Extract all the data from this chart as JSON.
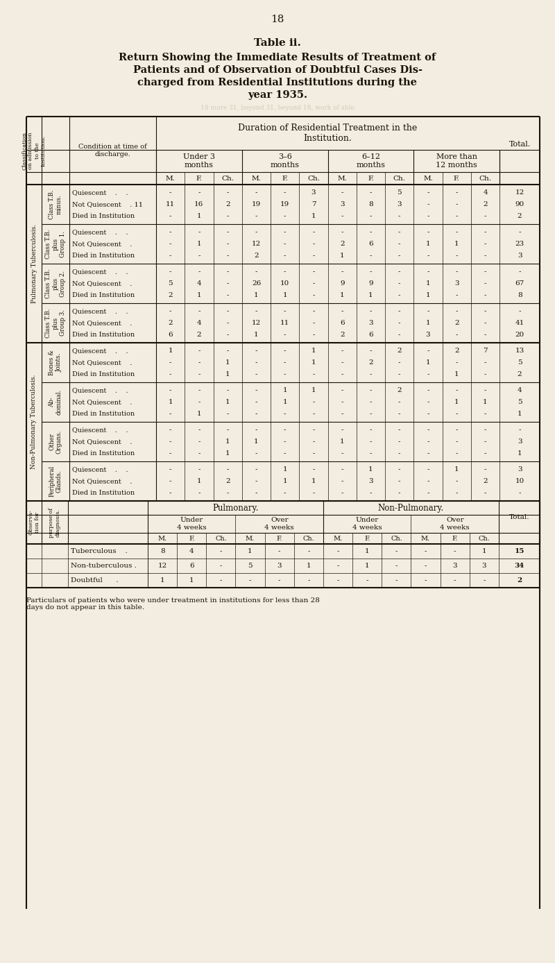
{
  "page_number": "18",
  "title_line1": "Table ii.",
  "title_line2": "Return Showing the Immediate Results of Treatment of",
  "title_line3": "Patients and of Observation of Doubtful Cases Dis-",
  "title_line4": "charged from Residential Institutions during the",
  "title_line5": "year 1935.",
  "bg_color": "#f2ede0",
  "text_color": "#1a1108",
  "footer_text": "Particulars of patients who were under treatment in institutions for less than 28\ndays do not appear in this table.",
  "sections": [
    {
      "main_label": "Pulmonary Tuberculosis.",
      "sub_label": "Class T.B.\nminus.",
      "rows": [
        {
          "condition": "Quiescent    .    .",
          "vals": [
            "-",
            "-",
            "-",
            "-",
            "-",
            "3",
            "-",
            "-",
            "5",
            "-",
            "-",
            "4",
            "12"
          ]
        },
        {
          "condition": "Not Quiescent    . 11",
          "vals": [
            "11",
            "16",
            "2",
            "19",
            "19",
            "7",
            "3",
            "8",
            "3",
            "-",
            "-",
            "2",
            "90"
          ]
        },
        {
          "condition": "Died in Institution",
          "vals": [
            "-",
            "1",
            "-",
            "-",
            "-",
            "1",
            "-",
            "-",
            "-",
            "-",
            "-",
            "-",
            "2"
          ]
        }
      ],
      "pulmonary": true
    },
    {
      "main_label": "",
      "sub_label": "Class T.B.\nplus\nGroup 1.",
      "rows": [
        {
          "condition": "Quiescent    .    .",
          "vals": [
            "-",
            "-",
            "-",
            "-",
            "-",
            "-",
            "-",
            "-",
            "-",
            "-",
            "-",
            "-",
            "-"
          ]
        },
        {
          "condition": "Not Quiescent    .",
          "vals": [
            "-",
            "1",
            "-",
            "12",
            "-",
            "-",
            "2",
            "6",
            "-",
            "1",
            "1",
            "-",
            "23"
          ]
        },
        {
          "condition": "Died in Institution",
          "vals": [
            "-",
            "-",
            "-",
            "2",
            "-",
            "-",
            "1",
            "-",
            "-",
            "-",
            "-",
            "-",
            "3"
          ]
        }
      ],
      "pulmonary": true
    },
    {
      "main_label": "",
      "sub_label": "Class T.B.\nplus\nGroup 2.",
      "rows": [
        {
          "condition": "Quiescent    .    .",
          "vals": [
            "-",
            "-",
            "-",
            "-",
            "-",
            "-",
            "-",
            "-",
            "-",
            "-",
            "-",
            "-",
            "-"
          ]
        },
        {
          "condition": "Not Quiescent    .",
          "vals": [
            "5",
            "4",
            "-",
            "26",
            "10",
            "-",
            "9",
            "9",
            "-",
            "1",
            "3",
            "-",
            "67"
          ]
        },
        {
          "condition": "Died in Institution",
          "vals": [
            "2",
            "1",
            "-",
            "1",
            "1",
            "-",
            "1",
            "1",
            "-",
            "1",
            "-",
            "-",
            "8"
          ]
        }
      ],
      "pulmonary": true
    },
    {
      "main_label": "",
      "sub_label": "Class T.B.\nplus\nGroup 3.",
      "rows": [
        {
          "condition": "Quiescent    .    .",
          "vals": [
            "-",
            "-",
            "-",
            "-",
            "-",
            "-",
            "-",
            "-",
            "-",
            "-",
            "-",
            "-",
            "-"
          ]
        },
        {
          "condition": "Not Quiescent    .",
          "vals": [
            "2",
            "4",
            "-",
            "12",
            "11",
            "-",
            "6",
            "3",
            "-",
            "1",
            "2",
            "-",
            "41"
          ]
        },
        {
          "condition": "Died in Institution",
          "vals": [
            "6",
            "2",
            "-",
            "1",
            "-",
            "-",
            "2",
            "6",
            "-",
            "3",
            "-",
            "-",
            "20"
          ]
        }
      ],
      "pulmonary": true
    },
    {
      "main_label": "Non-Pulmonary Tuberculosis.",
      "sub_label": "Bones &\nJoints.",
      "rows": [
        {
          "condition": "Quiescent    .    .",
          "vals": [
            "1",
            "-",
            "-",
            "-",
            "-",
            "1",
            "-",
            "-",
            "2",
            "-",
            "2",
            "7",
            "13"
          ]
        },
        {
          "condition": "Not Quiescent    .",
          "vals": [
            "-",
            "-",
            "1",
            "-",
            "-",
            "1",
            "-",
            "2",
            "-",
            "1",
            "-",
            "-",
            "5"
          ]
        },
        {
          "condition": "Died in Institution",
          "vals": [
            "-",
            "-",
            "1",
            "-",
            "-",
            "-",
            "-",
            "-",
            "-",
            "-",
            "1",
            "-",
            "2"
          ]
        }
      ],
      "pulmonary": false
    },
    {
      "main_label": "",
      "sub_label": "Ab-\ndominal.",
      "rows": [
        {
          "condition": "Quiescent    .    .",
          "vals": [
            "-",
            "-",
            "-",
            "-",
            "1",
            "1",
            "-",
            "-",
            "2",
            "-",
            "-",
            "-",
            "4"
          ]
        },
        {
          "condition": "Not Quiescent    .",
          "vals": [
            "1",
            "-",
            "1",
            "-",
            "1",
            "-",
            "-",
            "-",
            "-",
            "-",
            "1",
            "1",
            "5"
          ]
        },
        {
          "condition": "Died in Institution",
          "vals": [
            "-",
            "1",
            "-",
            "-",
            "-",
            "-",
            "-",
            "-",
            "-",
            "-",
            "-",
            "-",
            "1"
          ]
        }
      ],
      "pulmonary": false
    },
    {
      "main_label": "",
      "sub_label": "Other\nOrgans.",
      "rows": [
        {
          "condition": "Quiescent    .    .",
          "vals": [
            "-",
            "-",
            "-",
            "-",
            "-",
            "-",
            "-",
            "-",
            "-",
            "-",
            "-",
            "-",
            "-"
          ]
        },
        {
          "condition": "Not Quiescent    .",
          "vals": [
            "-",
            "-",
            "1",
            "1",
            "-",
            "-",
            "1",
            "-",
            "-",
            "-",
            "-",
            "-",
            "3"
          ]
        },
        {
          "condition": "Died in Institution",
          "vals": [
            "-",
            "-",
            "1",
            "-",
            "-",
            "-",
            "-",
            "-",
            "-",
            "-",
            "-",
            "-",
            "1"
          ]
        }
      ],
      "pulmonary": false
    },
    {
      "main_label": "",
      "sub_label": "Peripheral\nGlands.",
      "rows": [
        {
          "condition": "Quiescent    .    .",
          "vals": [
            "-",
            "-",
            "-",
            "-",
            "1",
            "-",
            "-",
            "1",
            "-",
            "-",
            "1",
            "-",
            "3"
          ]
        },
        {
          "condition": "Not Quiescent    .",
          "vals": [
            "-",
            "1",
            "2",
            "-",
            "1",
            "1",
            "-",
            "3",
            "-",
            "-",
            "-",
            "2",
            "10"
          ]
        },
        {
          "condition": "Died in Institution",
          "vals": [
            "-",
            "-",
            "-",
            "-",
            "-",
            "-",
            "-",
            "-",
            "-",
            "-",
            "-",
            "-",
            "-"
          ]
        }
      ],
      "pulmonary": false
    }
  ],
  "obs_rows": [
    {
      "label": "Tuberculous    .",
      "vals": [
        "8",
        "4",
        "-",
        "1",
        "-",
        "-",
        "-",
        "1",
        "-",
        "-",
        "-",
        "1",
        "15"
      ]
    },
    {
      "label": "Non-tuberculous .",
      "vals": [
        "12",
        "6",
        "-",
        "5",
        "3",
        "1",
        "-",
        "1",
        "-",
        "-",
        "3",
        "3",
        "34"
      ]
    },
    {
      "label": "Doubtful      .",
      "vals": [
        "1",
        "1",
        "-",
        "-",
        "-",
        "-",
        "-",
        "-",
        "-",
        "-",
        "-",
        "-",
        "2"
      ]
    }
  ]
}
